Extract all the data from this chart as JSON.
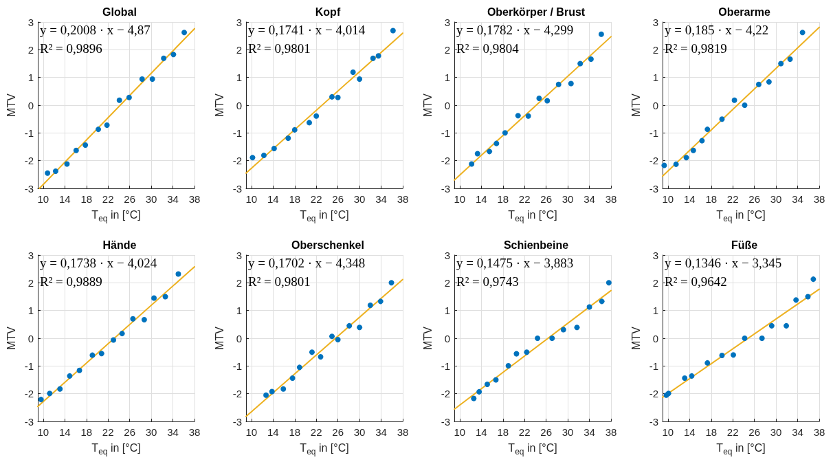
{
  "chart_data": [
    {
      "type": "scatter",
      "title": "Global",
      "xlabel": "T$_{eq}$ in [°C]",
      "ylabel": "MTV",
      "annotations": [
        "y = 0,2008 · x − 4,87",
        "R² = 0,9896"
      ],
      "xlim": [
        9,
        38
      ],
      "xticks": [
        10,
        14,
        18,
        22,
        26,
        30,
        34,
        38
      ],
      "ylim": [
        -3,
        3
      ],
      "yticks": [
        -3,
        -2,
        -1,
        0,
        1,
        2,
        3
      ],
      "grid": true,
      "marker": "circle",
      "series": [
        {
          "color": "#0072bd",
          "x": [
            10.8,
            12.3,
            14.4,
            16.1,
            17.8,
            20.2,
            21.8,
            24.1,
            25.9,
            28.3,
            30.2,
            32.3,
            34.1,
            36.1
          ],
          "values": [
            -2.45,
            -2.38,
            -2.12,
            -1.63,
            -1.44,
            -0.87,
            -0.72,
            0.18,
            0.28,
            0.94,
            0.94,
            1.69,
            1.83,
            2.62
          ]
        },
        {
          "type": "line",
          "marker": "none",
          "color": "#edb120",
          "x": [
            9.31,
            38
          ],
          "values": [
            -3,
            2.76
          ]
        }
      ]
    },
    {
      "type": "scatter",
      "title": "Kopf",
      "xlabel": "T$_{eq}$ in [°C]",
      "ylabel": "MTV",
      "annotations": [
        "y = 0,1741 · x − 4,014",
        "R² = 0,9801"
      ],
      "xlim": [
        9,
        38
      ],
      "xticks": [
        10,
        14,
        18,
        22,
        26,
        30,
        34,
        38
      ],
      "ylim": [
        -3,
        3
      ],
      "yticks": [
        -3,
        -2,
        -1,
        0,
        1,
        2,
        3
      ],
      "grid": true,
      "marker": "circle",
      "series": [
        {
          "color": "#0072bd",
          "x": [
            10.2,
            12.3,
            14.2,
            16.8,
            18.0,
            20.7,
            22.0,
            24.9,
            26.0,
            28.8,
            30.0,
            32.5,
            33.5,
            36.2
          ],
          "values": [
            -1.89,
            -1.81,
            -1.56,
            -1.19,
            -0.89,
            -0.63,
            -0.39,
            0.3,
            0.28,
            1.19,
            0.94,
            1.69,
            1.78,
            2.69
          ]
        },
        {
          "type": "line",
          "marker": "none",
          "color": "#edb120",
          "x": [
            9,
            38
          ],
          "values": [
            -2.45,
            2.6
          ]
        }
      ]
    },
    {
      "type": "scatter",
      "title": "Oberkörper / Brust",
      "xlabel": "T$_{eq}$ in [°C]",
      "ylabel": "MTV",
      "annotations": [
        "y = 0,1782 · x − 4,299",
        "R² = 0,9804"
      ],
      "xlim": [
        9,
        38
      ],
      "xticks": [
        10,
        14,
        18,
        22,
        26,
        30,
        34,
        38
      ],
      "ylim": [
        -3,
        3
      ],
      "yticks": [
        -3,
        -2,
        -1,
        0,
        1,
        2,
        3
      ],
      "grid": true,
      "marker": "circle",
      "series": [
        {
          "color": "#0072bd",
          "x": [
            12.2,
            13.3,
            15.5,
            16.8,
            18.4,
            20.8,
            22.7,
            24.7,
            26.2,
            28.3,
            30.6,
            32.3,
            34.3,
            36.2
          ],
          "values": [
            -2.12,
            -1.75,
            -1.67,
            -1.38,
            -1.0,
            -0.38,
            -0.39,
            0.25,
            0.16,
            0.75,
            0.78,
            1.5,
            1.66,
            2.56
          ]
        },
        {
          "type": "line",
          "marker": "none",
          "color": "#edb120",
          "x": [
            9,
            38
          ],
          "values": [
            -2.7,
            2.47
          ]
        }
      ]
    },
    {
      "type": "scatter",
      "title": "Oberarme",
      "xlabel": "T$_{eq}$ in [°C]",
      "ylabel": "MTV",
      "annotations": [
        "y = 0,185 · x − 4,22",
        "R² = 0,9819"
      ],
      "xlim": [
        9,
        38
      ],
      "xticks": [
        10,
        14,
        18,
        22,
        26,
        30,
        34,
        38
      ],
      "ylim": [
        -3,
        3
      ],
      "yticks": [
        -3,
        -2,
        -1,
        0,
        1,
        2,
        3
      ],
      "grid": true,
      "marker": "circle",
      "series": [
        {
          "color": "#0072bd",
          "x": [
            9.3,
            11.5,
            13.4,
            14.7,
            16.3,
            17.3,
            20.0,
            22.3,
            24.2,
            26.8,
            28.7,
            30.9,
            32.6,
            34.9
          ],
          "values": [
            -2.17,
            -2.13,
            -1.89,
            -1.63,
            -1.28,
            -0.87,
            -0.5,
            0.18,
            0,
            0.75,
            0.84,
            1.5,
            1.66,
            2.62
          ]
        },
        {
          "type": "line",
          "marker": "none",
          "color": "#edb120",
          "x": [
            9,
            38
          ],
          "values": [
            -2.56,
            2.81
          ]
        }
      ]
    },
    {
      "type": "scatter",
      "title": "Hände",
      "xlabel": "T$_{eq}$ in [°C]",
      "ylabel": "MTV",
      "annotations": [
        "y = 0,1738 · x − 4,024",
        "R² = 0,9889"
      ],
      "xlim": [
        9,
        38
      ],
      "xticks": [
        10,
        14,
        18,
        22,
        26,
        30,
        34,
        38
      ],
      "ylim": [
        -3,
        3
      ],
      "yticks": [
        -3,
        -2,
        -1,
        0,
        1,
        2,
        3
      ],
      "grid": true,
      "marker": "circle",
      "series": [
        {
          "color": "#0072bd",
          "x": [
            9.6,
            11.2,
            13.1,
            14.9,
            16.7,
            19.1,
            20.8,
            23.0,
            24.6,
            26.6,
            28.7,
            30.5,
            32.6,
            35.0
          ],
          "values": [
            -2.21,
            -1.99,
            -1.83,
            -1.36,
            -1.16,
            -0.61,
            -0.55,
            -0.06,
            0.17,
            0.7,
            0.67,
            1.45,
            1.5,
            2.32
          ]
        },
        {
          "type": "line",
          "marker": "none",
          "color": "#edb120",
          "x": [
            9,
            38
          ],
          "values": [
            -2.46,
            2.58
          ]
        }
      ]
    },
    {
      "type": "scatter",
      "title": "Oberschenkel",
      "xlabel": "T$_{eq}$ in [°C]",
      "ylabel": "MTV",
      "annotations": [
        "y = 0,1702 · x − 4,348",
        "R² = 0,9801"
      ],
      "xlim": [
        9,
        38
      ],
      "xticks": [
        10,
        14,
        18,
        22,
        26,
        30,
        34,
        38
      ],
      "ylim": [
        -3,
        3
      ],
      "yticks": [
        -3,
        -2,
        -1,
        0,
        1,
        2,
        3
      ],
      "grid": true,
      "marker": "circle",
      "series": [
        {
          "color": "#0072bd",
          "x": [
            12.7,
            13.8,
            15.9,
            17.6,
            18.9,
            21.2,
            22.8,
            24.9,
            26.0,
            28.1,
            30.0,
            32.0,
            33.9,
            35.9
          ],
          "values": [
            -2.05,
            -1.92,
            -1.83,
            -1.44,
            -1.05,
            -0.5,
            -0.67,
            0.07,
            -0.05,
            0.45,
            0.39,
            1.19,
            1.33,
            2.0
          ]
        },
        {
          "type": "line",
          "marker": "none",
          "color": "#edb120",
          "x": [
            9,
            38
          ],
          "values": [
            -2.82,
            2.12
          ]
        }
      ]
    },
    {
      "type": "scatter",
      "title": "Schienbeine",
      "xlabel": "T$_{eq}$ in [°C]",
      "ylabel": "MTV",
      "annotations": [
        "y = 0,1475 · x − 3,883",
        "R² = 0,9743"
      ],
      "xlim": [
        9,
        38
      ],
      "xticks": [
        10,
        14,
        18,
        22,
        26,
        30,
        34,
        38
      ],
      "ylim": [
        -3,
        3
      ],
      "yticks": [
        -3,
        -2,
        -1,
        0,
        1,
        2,
        3
      ],
      "grid": true,
      "marker": "circle",
      "series": [
        {
          "color": "#0072bd",
          "x": [
            12.6,
            13.6,
            15.1,
            16.7,
            19.0,
            20.5,
            22.4,
            24.4,
            27.1,
            29.2,
            31.7,
            34.0,
            36.3,
            37.6
          ],
          "values": [
            -2.17,
            -1.93,
            -1.66,
            -1.5,
            -0.99,
            -0.56,
            -0.5,
            0,
            0,
            0.31,
            0.39,
            1.13,
            1.33,
            2.0
          ]
        },
        {
          "type": "line",
          "marker": "none",
          "color": "#edb120",
          "x": [
            9,
            38
          ],
          "values": [
            -2.56,
            1.72
          ]
        }
      ]
    },
    {
      "type": "scatter",
      "title": "Füße",
      "xlabel": "T$_{eq}$ in [°C]",
      "ylabel": "MTV",
      "annotations": [
        "y = 0,1346 · x − 3,345",
        "R² = 0,9642"
      ],
      "xlim": [
        9,
        38
      ],
      "xticks": [
        10,
        14,
        18,
        22,
        26,
        30,
        34,
        38
      ],
      "ylim": [
        -3,
        3
      ],
      "yticks": [
        -3,
        -2,
        -1,
        0,
        1,
        2,
        3
      ],
      "grid": true,
      "marker": "circle",
      "series": [
        {
          "color": "#0072bd",
          "x": [
            9.7,
            10.1,
            13.1,
            14.4,
            17.3,
            20.0,
            22.1,
            24.2,
            27.4,
            29.2,
            31.9,
            33.7,
            35.9,
            36.9
          ],
          "values": [
            -2.05,
            -1.99,
            -1.44,
            -1.36,
            -0.89,
            -0.62,
            -0.6,
            0,
            0,
            0.45,
            0.45,
            1.38,
            1.5,
            2.13
          ]
        },
        {
          "type": "line",
          "marker": "none",
          "color": "#edb120",
          "x": [
            9,
            38
          ],
          "values": [
            -2.13,
            1.77
          ]
        }
      ]
    }
  ]
}
